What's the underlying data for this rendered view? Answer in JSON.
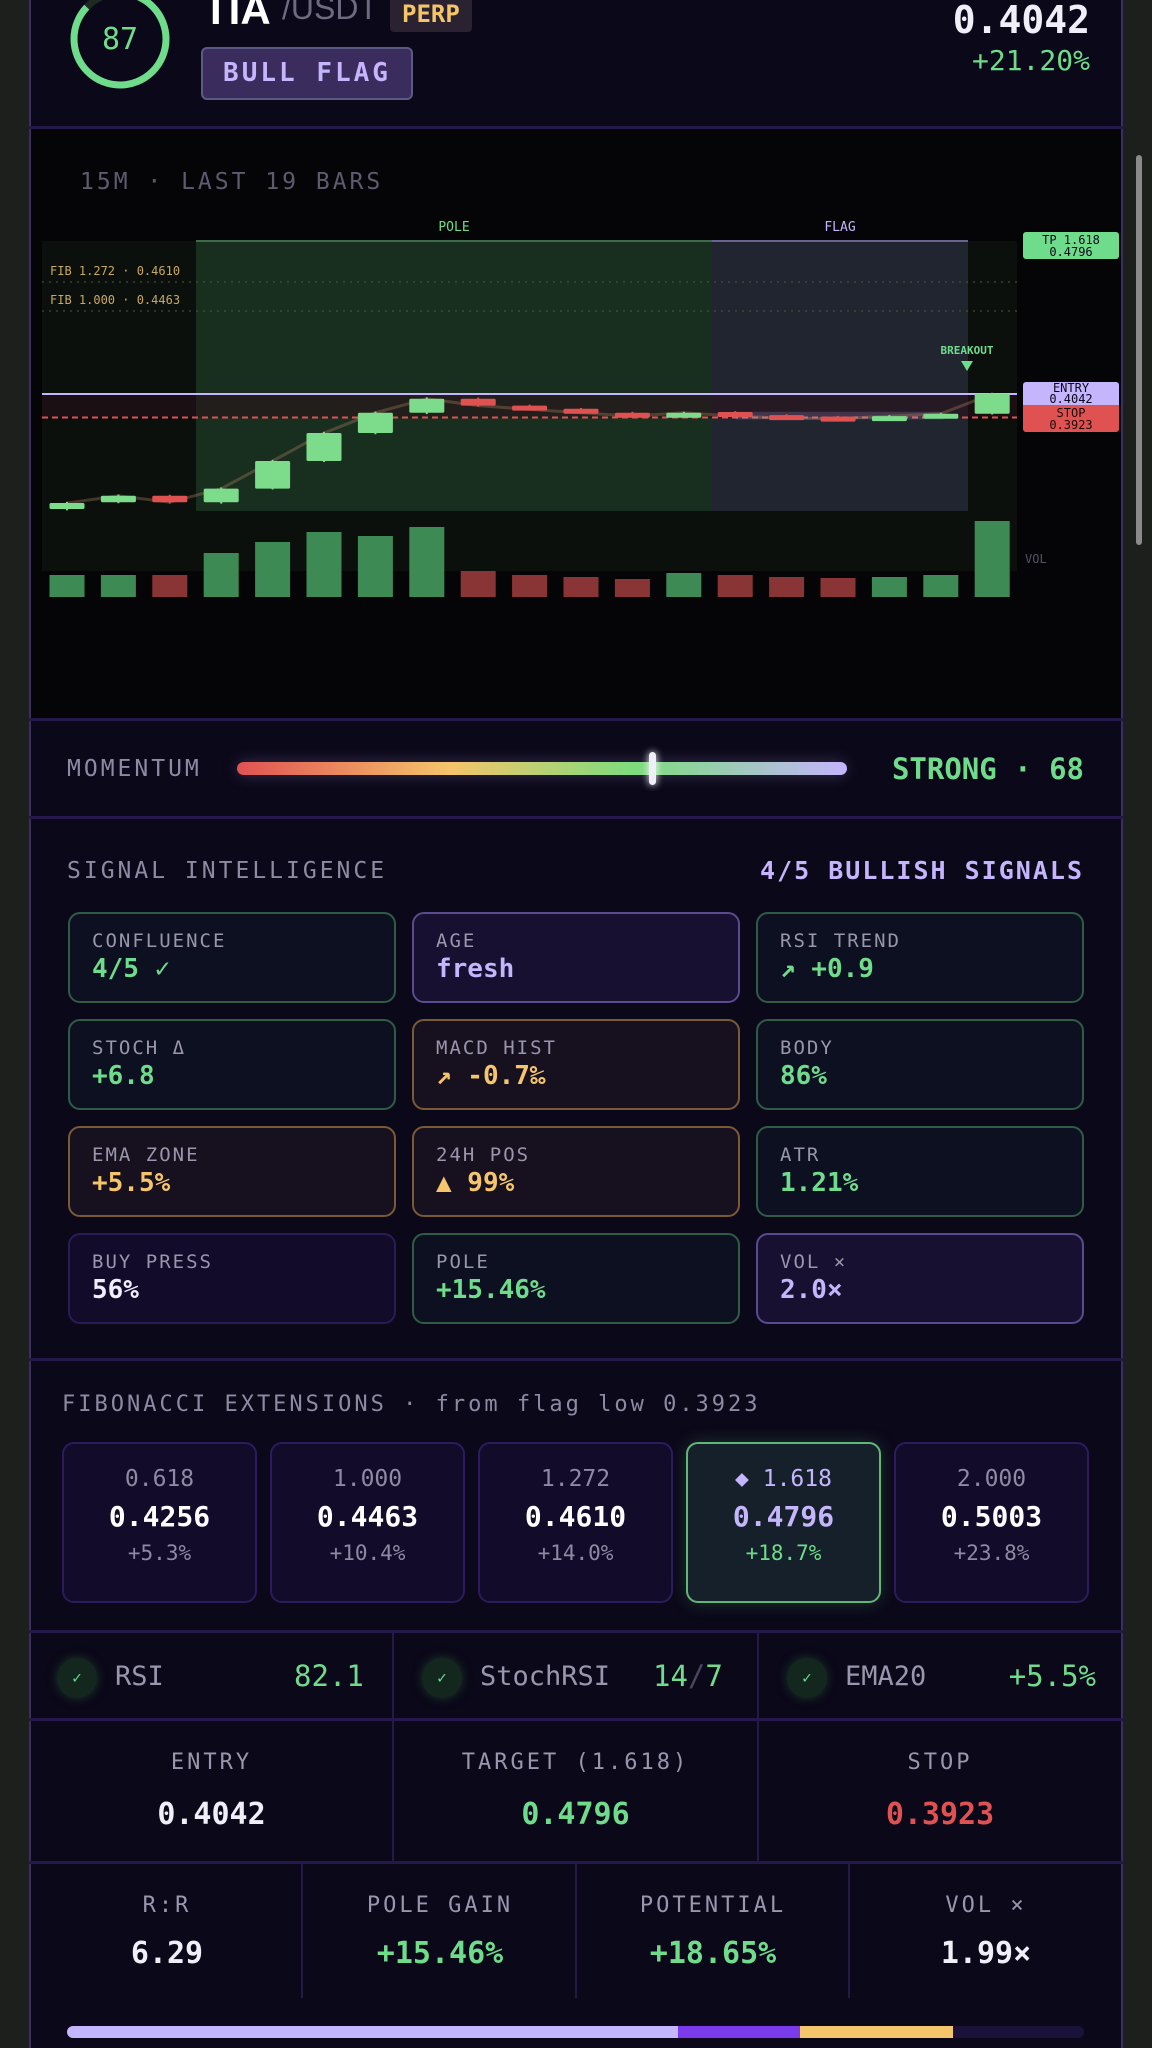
{
  "header": {
    "score": "87",
    "score_value": 87,
    "symbol": "TIA",
    "quote": "/USDT",
    "market_badge": "PERP",
    "pattern": "BULL FLAG",
    "price": "0.4042",
    "change": "+21.20%"
  },
  "chart": {
    "subtitle": "15M · LAST 19 BARS",
    "pole_label": "POLE",
    "flag_label": "FLAG",
    "fib_lines": [
      "FIB 1.272 · 0.4610",
      "FIB 1.000 · 0.4463"
    ],
    "breakout_label": "BREAKOUT",
    "vol_label": "VOL",
    "tags": {
      "tp_label": "TP 1.618",
      "tp_value": "0.4796",
      "entry_label": "ENTRY",
      "entry_value": "0.4042",
      "stop_label": "STOP",
      "stop_value": "0.3923"
    }
  },
  "chart_data": {
    "type": "candlestick",
    "timeframe": "15m",
    "entry": 0.4042,
    "stop": 0.3923,
    "tp": 0.4796,
    "fib_1272": 0.461,
    "fib_1000": 0.4463,
    "ohlc": [
      [
        0.3459,
        0.3495,
        0.3452,
        0.3489
      ],
      [
        0.3493,
        0.3532,
        0.3488,
        0.3526
      ],
      [
        0.3526,
        0.3531,
        0.3487,
        0.3493
      ],
      [
        0.3493,
        0.3568,
        0.3486,
        0.3562
      ],
      [
        0.3562,
        0.3708,
        0.3558,
        0.3702
      ],
      [
        0.3702,
        0.385,
        0.3697,
        0.3844
      ],
      [
        0.3844,
        0.3953,
        0.3838,
        0.3947
      ],
      [
        0.3947,
        0.4025,
        0.394,
        0.4018
      ],
      [
        0.4018,
        0.4024,
        0.3978,
        0.3983
      ],
      [
        0.3983,
        0.3988,
        0.396,
        0.3964
      ],
      [
        0.3967,
        0.3971,
        0.3943,
        0.3947
      ],
      [
        0.3947,
        0.3952,
        0.3925,
        0.393
      ],
      [
        0.3934,
        0.3952,
        0.393,
        0.3947
      ],
      [
        0.3951,
        0.3955,
        0.3926,
        0.393
      ],
      [
        0.3935,
        0.3939,
        0.3915,
        0.3919
      ],
      [
        0.3927,
        0.3931,
        0.3913,
        0.3917
      ],
      [
        0.392,
        0.3935,
        0.3916,
        0.393
      ],
      [
        0.393,
        0.3946,
        0.3926,
        0.3942
      ],
      [
        0.3942,
        0.4048,
        0.3938,
        0.4042
      ]
    ],
    "volume_relative": [
      22,
      22,
      22,
      44,
      55,
      65,
      61,
      70,
      26,
      22,
      20,
      18,
      24,
      22,
      20,
      19,
      20,
      22,
      76
    ],
    "pole_bars": [
      2,
      9
    ],
    "flag_bars": [
      10,
      18
    ]
  },
  "momentum": {
    "label": "MOMENTUM",
    "value": 68,
    "text": "STRONG · 68"
  },
  "signals": {
    "title": "SIGNAL INTELLIGENCE",
    "summary": "4/5 BULLISH SIGNALS",
    "cards": [
      {
        "k": "CONFLUENCE",
        "v": "4/5 ✓"
      },
      {
        "k": "AGE",
        "v": "fresh"
      },
      {
        "k": "RSI TREND",
        "v": "↗ +0.9"
      },
      {
        "k": "STOCH Δ",
        "v": "+6.8"
      },
      {
        "k": "MACD HIST",
        "v": "↗ -0.7‰"
      },
      {
        "k": "BODY",
        "v": "86%"
      },
      {
        "k": "EMA ZONE",
        "v": "+5.5%"
      },
      {
        "k": "24H POS",
        "v": "▲ 99%"
      },
      {
        "k": "ATR",
        "v": "1.21%"
      },
      {
        "k": "BUY PRESS",
        "v": "56%"
      },
      {
        "k": "POLE",
        "v": "+15.46%"
      },
      {
        "k": "VOL ×",
        "v": "2.0×"
      }
    ]
  },
  "fib": {
    "title": "FIBONACCI EXTENSIONS · from flag low 0.3923",
    "levels": [
      {
        "l": "0.618",
        "p": "0.4256",
        "c": "+5.3%"
      },
      {
        "l": "1.000",
        "p": "0.4463",
        "c": "+10.4%"
      },
      {
        "l": "1.272",
        "p": "0.4610",
        "c": "+14.0%"
      },
      {
        "l": "◆ 1.618",
        "p": "0.4796",
        "c": "+18.7%"
      },
      {
        "l": "2.000",
        "p": "0.5003",
        "c": "+23.8%"
      }
    ]
  },
  "indicators": [
    {
      "name": "RSI",
      "value": "82.1"
    },
    {
      "name": "StochRSI",
      "value_a": "14",
      "sep": "/",
      "value_b": "7"
    },
    {
      "name": "EMA20",
      "value": "+5.5%"
    }
  ],
  "trade": {
    "entry_label": "ENTRY",
    "entry": "0.4042",
    "target_label": "TARGET (1.618)",
    "target": "0.4796",
    "stop_label": "STOP",
    "stop": "0.3923"
  },
  "stats": [
    {
      "k": "R:R",
      "v": "6.29"
    },
    {
      "k": "POLE GAIN",
      "v": "+15.46%"
    },
    {
      "k": "POTENTIAL",
      "v": "+18.65%"
    },
    {
      "k": "VOL ×",
      "v": "1.99×"
    }
  ],
  "range_bar": {
    "segments": [
      0.601,
      0.12,
      0.15
    ]
  },
  "colors": {
    "green": "#6fdc8c",
    "red": "#e05252",
    "lavender": "#c4b5fd",
    "yellow": "#f5c56b",
    "bg": "#0b0819"
  }
}
